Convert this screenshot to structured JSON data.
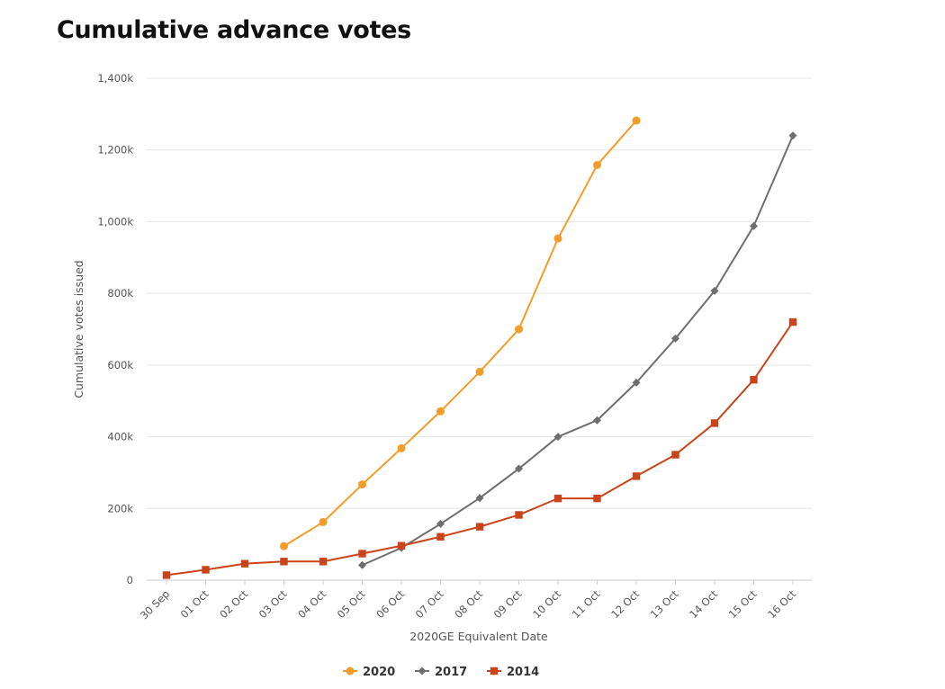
{
  "chart_data": {
    "type": "line",
    "title": "Cumulative advance votes",
    "xlabel": "2020GE Equivalent Date",
    "ylabel": "Cumulative votes issued",
    "categories": [
      "30 Sep",
      "01 Oct",
      "02 Oct",
      "03 Oct",
      "04 Oct",
      "05 Oct",
      "06 Oct",
      "07 Oct",
      "08 Oct",
      "09 Oct",
      "10 Oct",
      "11 Oct",
      "12 Oct",
      "13 Oct",
      "14 Oct",
      "15 Oct",
      "16 Oct"
    ],
    "y_ticks": [
      0,
      200000,
      400000,
      600000,
      800000,
      1000000,
      1200000,
      1400000
    ],
    "y_tick_labels": [
      "0",
      "200k",
      "400k",
      "600k",
      "800k",
      "1,000k",
      "1,200k",
      "1,400k"
    ],
    "ylim": [
      0,
      1400000
    ],
    "grid": true,
    "legend_position": "bottom-center",
    "series": [
      {
        "name": "2020",
        "color": "#f49c2a",
        "marker": "circle",
        "values": [
          null,
          null,
          null,
          95000,
          162000,
          267000,
          368000,
          471000,
          581000,
          700000,
          953000,
          1158000,
          1282000,
          null,
          null,
          null,
          null
        ]
      },
      {
        "name": "2017",
        "color": "#6e6e6e",
        "marker": "diamond",
        "values": [
          null,
          null,
          null,
          null,
          null,
          42000,
          90000,
          157000,
          229000,
          311000,
          400000,
          446000,
          551000,
          674000,
          807000,
          988000,
          1240000
        ]
      },
      {
        "name": "2014",
        "color": "#c9441a",
        "marker": "square",
        "values": [
          14000,
          29000,
          46000,
          52000,
          52000,
          74000,
          96000,
          121000,
          149000,
          182000,
          228000,
          228000,
          290000,
          350000,
          438000,
          559000,
          720000
        ]
      }
    ]
  }
}
